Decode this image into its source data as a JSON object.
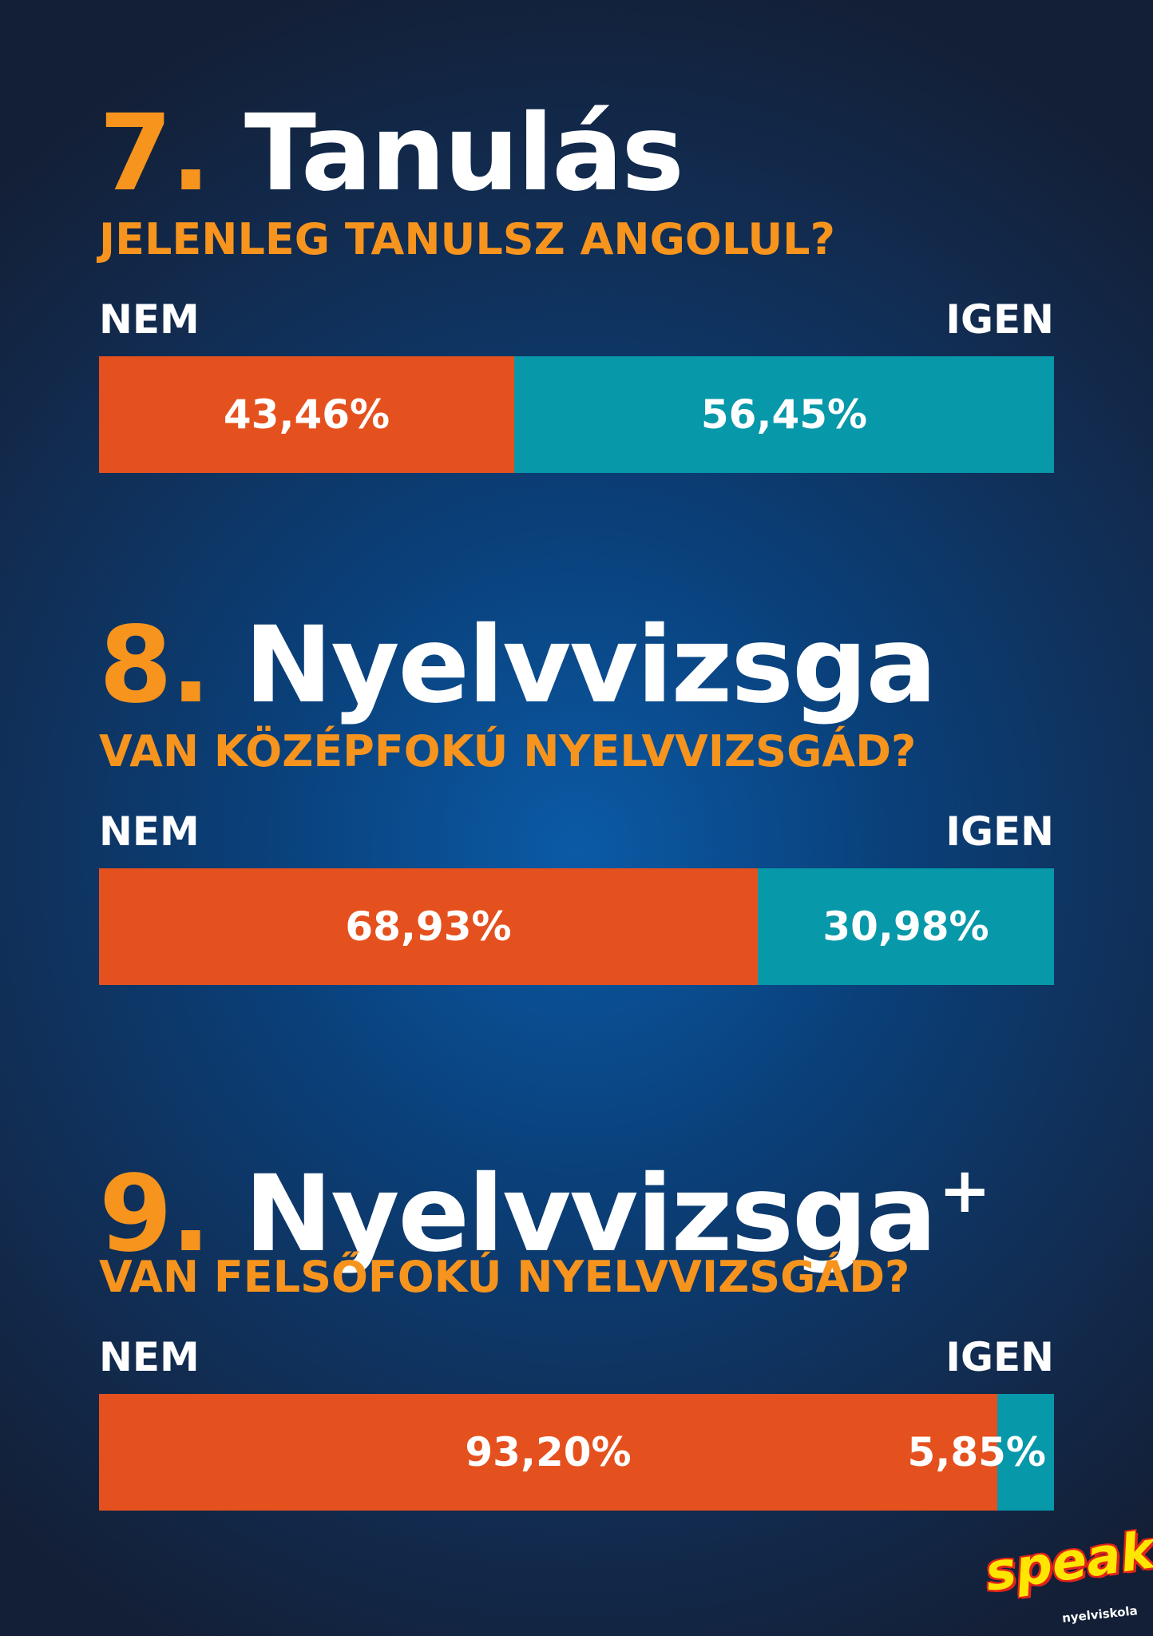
{
  "colors": {
    "nem": "#e5511e",
    "igen": "#0798a9",
    "accent": "#f7941d",
    "title_text": "#ffffff"
  },
  "chart_data": [
    {
      "type": "bar",
      "orientation": "horizontal-stacked-100",
      "title_number": "7.",
      "title_word": "Tanulás",
      "question": "JELENLEG TANULSZ ANGOLUL?",
      "categories": [
        "NEM",
        "IGEN"
      ],
      "values": [
        43.46,
        56.45
      ],
      "value_labels": [
        "43,46%",
        "56,45%"
      ]
    },
    {
      "type": "bar",
      "orientation": "horizontal-stacked-100",
      "title_number": "8.",
      "title_word": "Nyelvvizsga",
      "question": "VAN KÖZÉPFOKÚ NYELVVIZSGÁD?",
      "categories": [
        "NEM",
        "IGEN"
      ],
      "values": [
        68.93,
        30.98
      ],
      "value_labels": [
        "68,93%",
        "30,98%"
      ]
    },
    {
      "type": "bar",
      "orientation": "horizontal-stacked-100",
      "title_number": "9.",
      "title_word": "Nyelvvizsga",
      "title_sup": "+",
      "question": "VAN FELSŐFOKÚ NYELVVIZSGÁD?",
      "categories": [
        "NEM",
        "IGEN"
      ],
      "values": [
        93.2,
        5.85
      ],
      "value_labels": [
        "93,20%",
        "5,85%"
      ]
    }
  ],
  "logo": {
    "text": "speak!",
    "subtext": "nyelviskola"
  }
}
